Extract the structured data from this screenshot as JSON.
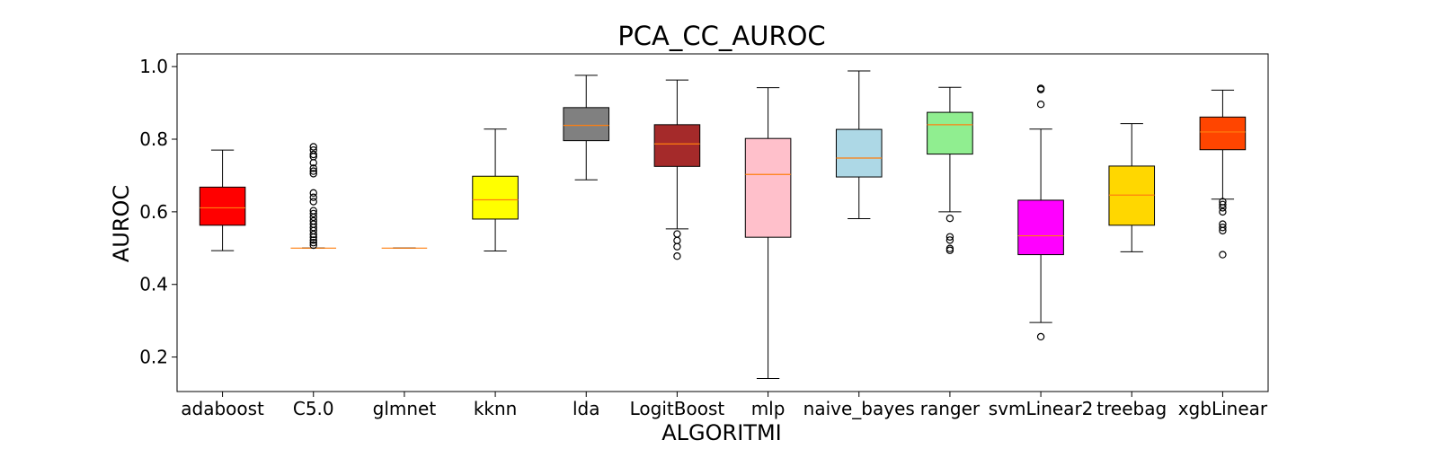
{
  "chart_data": {
    "type": "box",
    "title": "PCA_CC_AUROC",
    "xlabel": "ALGORITMI",
    "ylabel": "AUROC",
    "ylim": [
      0.105,
      1.035
    ],
    "yticks": [
      "0.2",
      "0.4",
      "0.6",
      "0.8",
      "1.0"
    ],
    "grid": false,
    "median_color": "#ff7f0e",
    "categories": [
      "adaboost",
      "C5.0",
      "glmnet",
      "kknn",
      "lda",
      "LogitBoost",
      "mlp",
      "naive_bayes",
      "ranger",
      "svmLinear2",
      "treebag",
      "xgbLinear"
    ],
    "boxes": [
      {
        "category": "adaboost",
        "color": "#ff0000",
        "whislo": 0.493,
        "q1": 0.563,
        "med": 0.611,
        "q3": 0.668,
        "whishi": 0.77,
        "fliers": []
      },
      {
        "category": "C5.0",
        "color": "#ff0000",
        "whislo": 0.5,
        "q1": 0.5,
        "med": 0.5,
        "q3": 0.5,
        "whishi": 0.5,
        "fliers": [
          0.508,
          0.515,
          0.522,
          0.53,
          0.538,
          0.548,
          0.557,
          0.566,
          0.575,
          0.585,
          0.595,
          0.603,
          0.628,
          0.64,
          0.652,
          0.705,
          0.712,
          0.72,
          0.735,
          0.752,
          0.758,
          0.77,
          0.779
        ]
      },
      {
        "category": "glmnet",
        "color": "#ff0000",
        "whislo": 0.5,
        "q1": 0.5,
        "med": 0.5,
        "q3": 0.5,
        "whishi": 0.5,
        "fliers": []
      },
      {
        "category": "kknn",
        "color": "#ffff00",
        "whislo": 0.492,
        "q1": 0.58,
        "med": 0.633,
        "q3": 0.698,
        "whishi": 0.828,
        "fliers": []
      },
      {
        "category": "lda",
        "color": "#808080",
        "whislo": 0.688,
        "q1": 0.796,
        "med": 0.838,
        "q3": 0.887,
        "whishi": 0.976,
        "fliers": []
      },
      {
        "category": "LogitBoost",
        "color": "#a52a2a",
        "whislo": 0.553,
        "q1": 0.725,
        "med": 0.787,
        "q3": 0.84,
        "whishi": 0.963,
        "fliers": [
          0.539,
          0.521,
          0.504,
          0.478
        ]
      },
      {
        "category": "mlp",
        "color": "#ffc0cb",
        "whislo": 0.141,
        "q1": 0.53,
        "med": 0.703,
        "q3": 0.802,
        "whishi": 0.942,
        "fliers": []
      },
      {
        "category": "naive_bayes",
        "color": "#add8e6",
        "whislo": 0.581,
        "q1": 0.696,
        "med": 0.748,
        "q3": 0.827,
        "whishi": 0.988,
        "fliers": []
      },
      {
        "category": "ranger",
        "color": "#90ee90",
        "whislo": 0.6,
        "q1": 0.759,
        "med": 0.84,
        "q3": 0.874,
        "whishi": 0.943,
        "fliers": [
          0.582,
          0.531,
          0.522,
          0.499,
          0.494
        ]
      },
      {
        "category": "svmLinear2",
        "color": "#ff00ff",
        "whislo": 0.295,
        "q1": 0.482,
        "med": 0.534,
        "q3": 0.632,
        "whishi": 0.828,
        "fliers": [
          0.94,
          0.937,
          0.896,
          0.256
        ]
      },
      {
        "category": "treebag",
        "color": "#ffd700",
        "whislo": 0.49,
        "q1": 0.563,
        "med": 0.646,
        "q3": 0.726,
        "whishi": 0.843,
        "fliers": []
      },
      {
        "category": "xgbLinear",
        "color": "#ff4500",
        "whislo": 0.635,
        "q1": 0.771,
        "med": 0.82,
        "q3": 0.861,
        "whishi": 0.935,
        "fliers": [
          0.628,
          0.62,
          0.611,
          0.6,
          0.566,
          0.557,
          0.548,
          0.482
        ]
      }
    ]
  }
}
